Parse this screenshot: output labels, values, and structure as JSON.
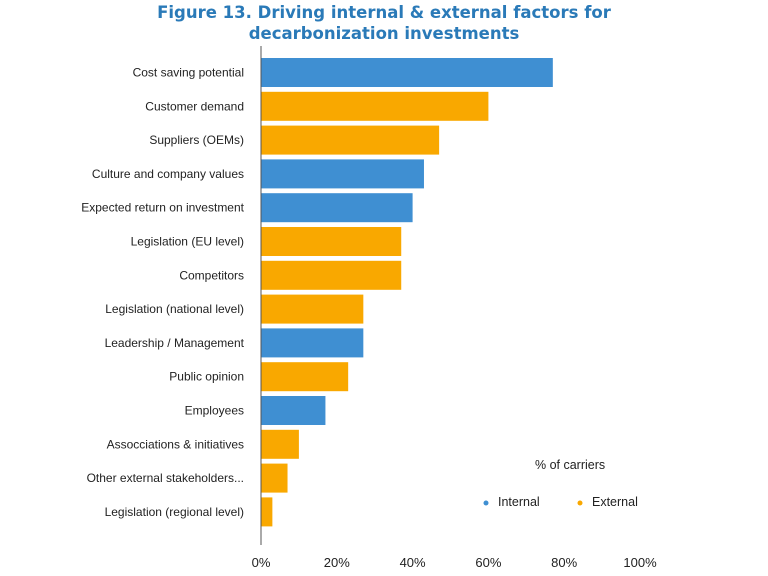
{
  "title_line1": "Figure 13. Driving internal & external factors for",
  "title_line2": "decarbonization investments",
  "colors": {
    "internal": "#3f8fd2",
    "external": "#f9a800",
    "title": "#2a7ab8"
  },
  "chart_data": {
    "type": "bar",
    "orientation": "horizontal",
    "title": "Figure 13. Driving internal & external factors for decarbonization investments",
    "categories": [
      "Cost saving potential",
      "Customer demand",
      "Suppliers (OEMs)",
      "Culture and company values",
      "Expected return on investment",
      "Legislation (EU level)",
      "Competitors",
      "Legislation (national level)",
      "Leadership / Management",
      "Public opinion",
      "Employees",
      "Assocciations & initiatives",
      "Other external stakeholders...",
      "Legislation (regional level)"
    ],
    "values": [
      77,
      60,
      47,
      43,
      40,
      37,
      37,
      27,
      27,
      23,
      17,
      10,
      7,
      3
    ],
    "factor_type": [
      "Internal",
      "External",
      "External",
      "Internal",
      "Internal",
      "External",
      "External",
      "External",
      "Internal",
      "External",
      "Internal",
      "External",
      "External",
      "External"
    ],
    "x_ticks": [
      "0%",
      "20%",
      "40%",
      "60%",
      "80%",
      "100%"
    ],
    "xlim": [
      0,
      100
    ],
    "legend": {
      "title": "% of carriers",
      "entries": [
        {
          "name": "Internal",
          "color": "#3f8fd2"
        },
        {
          "name": "External",
          "color": "#f9a800"
        }
      ],
      "position": "bottom-right"
    },
    "grid": false
  }
}
